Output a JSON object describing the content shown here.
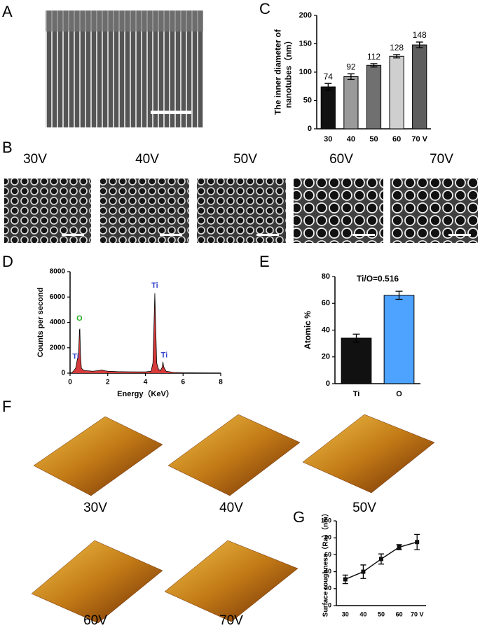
{
  "panel_labels": [
    "A",
    "B",
    "C",
    "D",
    "E",
    "F",
    "G"
  ],
  "sem_labels": [
    "30V",
    "40V",
    "50V",
    "60V",
    "70V"
  ],
  "afm_labels": [
    "30V",
    "40V",
    "50V",
    "60V",
    "70V"
  ],
  "chart_data": [
    {
      "type": "bar",
      "categories": [
        "30",
        "40",
        "50",
        "60",
        "70 V"
      ],
      "values": [
        74,
        92,
        112,
        128,
        148
      ],
      "errors": [
        6,
        5,
        3,
        3,
        5
      ],
      "colors": [
        "#111111",
        "#9a9a9a",
        "#707070",
        "#cfcfcf",
        "#5e5e5e"
      ],
      "ylabel": [
        "The inner diameter of",
        "nanotubes（nm）"
      ],
      "ylim": [
        0,
        200
      ],
      "yticks": [
        0,
        50,
        100,
        150,
        200
      ],
      "show_values": true
    },
    {
      "type": "area",
      "xlabel": "Energy（KeV）",
      "ylabel": [
        "Counts per second"
      ],
      "color": "#d63a3a",
      "x": [
        0,
        0.1,
        0.2,
        0.3,
        0.4,
        0.45,
        0.5,
        0.52,
        0.55,
        0.6,
        0.7,
        0.8,
        1.0,
        1.2,
        1.5,
        1.7,
        1.8,
        2.0,
        2.5,
        3.0,
        3.5,
        4.0,
        4.3,
        4.4,
        4.45,
        4.5,
        4.55,
        4.6,
        4.7,
        4.8,
        4.9,
        4.93,
        4.97,
        5.1,
        5.5,
        6.0,
        7.0,
        8.0
      ],
      "values": [
        0,
        50,
        200,
        400,
        1200,
        1500,
        3400,
        3500,
        1500,
        400,
        250,
        200,
        180,
        150,
        200,
        250,
        200,
        150,
        120,
        110,
        100,
        100,
        150,
        800,
        3500,
        6300,
        3500,
        800,
        300,
        200,
        500,
        900,
        500,
        150,
        60,
        30,
        10,
        0
      ],
      "xlim": [
        0,
        8
      ],
      "xticks": [
        0,
        2,
        4,
        6,
        8
      ],
      "ylim": [
        0,
        8000
      ],
      "yticks": [
        0,
        2000,
        4000,
        6000,
        8000
      ],
      "annotations": [
        {
          "text": "Ti",
          "x": 0.3,
          "y": 1300,
          "color": "#3344cc"
        },
        {
          "text": "O",
          "x": 0.5,
          "y": 4300,
          "color": "#22b022"
        },
        {
          "text": "Ti",
          "x": 4.5,
          "y": 6900,
          "color": "#3344cc"
        },
        {
          "text": "Ti",
          "x": 5.0,
          "y": 1400,
          "color": "#3344cc"
        }
      ]
    },
    {
      "type": "bar",
      "categories": [
        "Ti",
        "O"
      ],
      "values": [
        34,
        66
      ],
      "errors": [
        3,
        3
      ],
      "colors": [
        "#111111",
        "#4da3ff"
      ],
      "ylabel": [
        "Atomic %"
      ],
      "ylim": [
        0,
        80
      ],
      "yticks": [
        0,
        20,
        40,
        60,
        80
      ],
      "annotations": [
        {
          "text": "Ti/O=0.516"
        }
      ]
    },
    {
      "type": "line",
      "categories": [
        "30",
        "40",
        "50",
        "60",
        "70 V"
      ],
      "values": [
        31,
        40,
        55,
        69,
        75
      ],
      "errors": [
        5,
        8,
        6,
        3,
        9
      ],
      "color": "#111111",
      "ylabel": [
        "Surface roughness（Ra）（nm）"
      ],
      "ylim": [
        0,
        100
      ],
      "yticks": [
        0,
        20,
        40,
        60,
        80,
        100
      ]
    }
  ]
}
